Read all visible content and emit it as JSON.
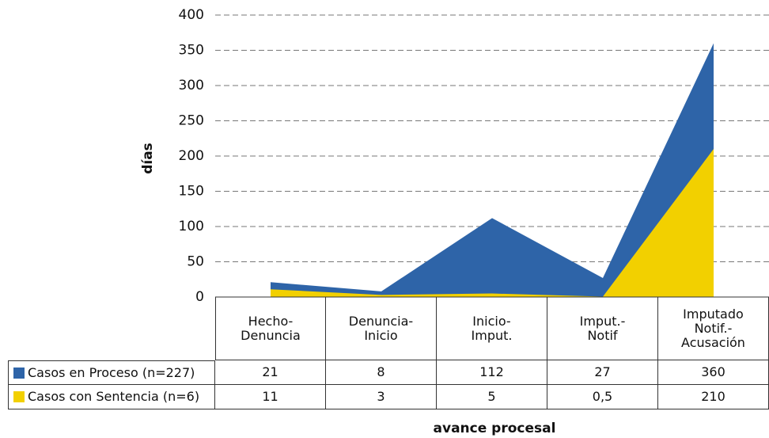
{
  "chart_data": {
    "type": "area",
    "y_label": "días",
    "x_label": "avance procesal",
    "categories": [
      "Hecho-\nDenuncia",
      "Denuncia-\nInicio",
      "Inicio-\nImput.",
      "Imput.-\nNotif",
      "Imputado\nNotif.-\nAcusación"
    ],
    "series": [
      {
        "name": "Casos en Proceso (n=227)",
        "color": "#2e64a8",
        "values": [
          21,
          8,
          112,
          27,
          360
        ]
      },
      {
        "name": "Casos con Sentencia (n=6)",
        "color": "#f2d000",
        "values": [
          11,
          3,
          5,
          0.5,
          210
        ],
        "value_labels": [
          "11",
          "3",
          "5",
          "0,5",
          "210"
        ]
      }
    ],
    "ylim": [
      0,
      400
    ],
    "yticks": [
      0,
      50,
      100,
      150,
      200,
      250,
      300,
      350,
      400
    ],
    "grid": true
  }
}
